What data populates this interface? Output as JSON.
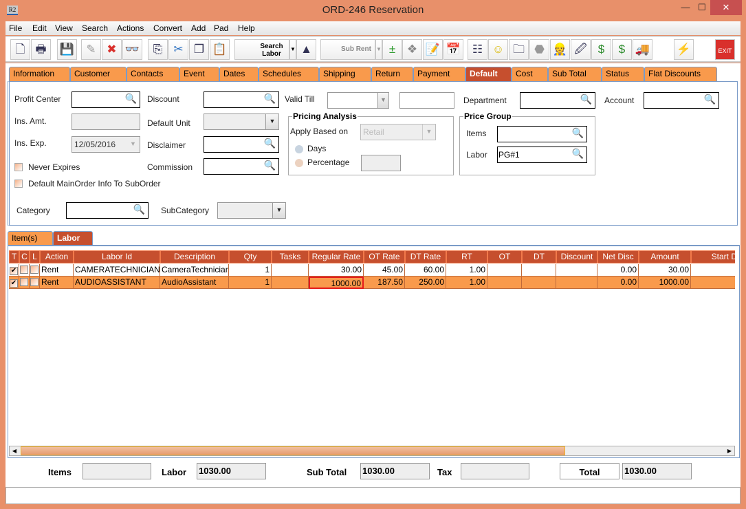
{
  "window": {
    "title": "ORD-246 Reservation",
    "app_icon": "R2",
    "minimize": "—",
    "maximize": "☐",
    "close": "✕"
  },
  "menu": [
    "File",
    "Edit",
    "View",
    "Search",
    "Actions",
    "Convert",
    "Add",
    "Pad",
    "Help"
  ],
  "toolbar": {
    "buttons": [
      {
        "icon": "new-document-icon",
        "glyph": "🗋"
      },
      {
        "icon": "print-icon",
        "glyph": "🖶"
      },
      {
        "icon": "save-icon",
        "glyph": "💾"
      },
      {
        "icon": "edit-pencil-icon",
        "glyph": "✎"
      },
      {
        "icon": "delete-icon",
        "glyph": "✖"
      },
      {
        "icon": "binoculars-icon",
        "glyph": "👓"
      },
      {
        "icon": "copy-order-icon",
        "glyph": "⎘"
      },
      {
        "icon": "cut-icon",
        "glyph": "✂"
      },
      {
        "icon": "copy-icon",
        "glyph": "❐"
      },
      {
        "icon": "paste-icon",
        "glyph": "📋"
      },
      {
        "icon": "shapes-icon",
        "glyph": "▲"
      },
      {
        "icon": "add-remove-icon",
        "glyph": "±"
      },
      {
        "icon": "puzzle-icon",
        "glyph": "❖"
      },
      {
        "icon": "notepad-icon",
        "glyph": "📝"
      },
      {
        "icon": "calendar-icon",
        "glyph": "📅"
      },
      {
        "icon": "org-chart-icon",
        "glyph": "☷"
      },
      {
        "icon": "smiley-icon",
        "glyph": "☺"
      },
      {
        "icon": "folder-clock-icon",
        "glyph": "🗀"
      },
      {
        "icon": "gray-shape-icon",
        "glyph": "⬣"
      },
      {
        "icon": "worker-icon",
        "glyph": "👷"
      },
      {
        "icon": "edit-document-icon",
        "glyph": "🖉"
      },
      {
        "icon": "dollar-arrows-icon",
        "glyph": "$"
      },
      {
        "icon": "dollar-notes-icon",
        "glyph": "$"
      },
      {
        "icon": "truck-icon",
        "glyph": "🚚"
      },
      {
        "icon": "lightning-icon",
        "glyph": "⚡"
      },
      {
        "icon": "exit-icon",
        "glyph": "EXIT"
      }
    ],
    "search_labor": "Search Labor",
    "sub_rent": "Sub Rent"
  },
  "tabs": [
    "Information",
    "Customer",
    "Contacts",
    "Event",
    "Dates",
    "Schedules",
    "Shipping",
    "Return",
    "Payment",
    "Default",
    "Cost",
    "Sub Total",
    "Status",
    "Flat Discounts"
  ],
  "active_tab": "Default",
  "form": {
    "profit_center": {
      "label": "Profit Center",
      "value": ""
    },
    "ins_amt": {
      "label": "Ins. Amt.",
      "value": ""
    },
    "ins_exp": {
      "label": "Ins. Exp.",
      "value": "12/05/2016"
    },
    "never_expires": {
      "label": "Never Expires",
      "checked": false
    },
    "default_mainorder": {
      "label": "Default MainOrder Info To SubOrder",
      "checked": false
    },
    "discount": {
      "label": "Discount",
      "value": ""
    },
    "default_unit": {
      "label": "Default Unit",
      "value": ""
    },
    "disclaimer": {
      "label": "Disclaimer",
      "value": ""
    },
    "commission": {
      "label": "Commission",
      "value": ""
    },
    "valid_till": {
      "label": "Valid Till",
      "date": "",
      "time": ""
    },
    "department": {
      "label": "Department",
      "value": ""
    },
    "account": {
      "label": "Account",
      "value": ""
    },
    "category": {
      "label": "Category",
      "value": ""
    },
    "subcategory": {
      "label": "SubCategory",
      "value": ""
    },
    "pricing_analysis": {
      "title": "Pricing Analysis",
      "apply_label": "Apply Based on",
      "apply_value": "Retail",
      "days": "Days",
      "percentage": "Percentage",
      "percentage_value": ""
    },
    "price_group": {
      "title": "Price Group",
      "items_label": "Items",
      "items_value": "",
      "labor_label": "Labor",
      "labor_value": "PG#1"
    }
  },
  "subtabs": [
    "Item(s)",
    "Labor"
  ],
  "active_subtab": "Labor",
  "table": {
    "columns": [
      "T",
      "C",
      "L",
      "Action",
      "Labor Id",
      "Description",
      "Qty",
      "Tasks",
      "Regular Rate",
      "OT Rate",
      "DT Rate",
      "RT",
      "OT",
      "DT",
      "Discount",
      "Net Disc",
      "Amount",
      "Start D"
    ],
    "rows": [
      {
        "t": true,
        "c": false,
        "l": false,
        "action": "Rent",
        "labor_id": "CAMERATECHNICIAN",
        "description": "CameraTechnician",
        "qty": "1",
        "tasks": "",
        "regular_rate": "30.00",
        "ot_rate": "45.00",
        "dt_rate": "60.00",
        "rt": "1.00",
        "ot": "",
        "dt": "",
        "discount": "",
        "net_disc": "0.00",
        "amount": "30.00",
        "start": ""
      },
      {
        "t": true,
        "c": false,
        "l": false,
        "action": "Rent",
        "labor_id": "AUDIOASSISTANT",
        "description": "AudioAssistant",
        "qty": "1",
        "tasks": "",
        "regular_rate": "1000.00",
        "ot_rate": "187.50",
        "dt_rate": "250.00",
        "rt": "1.00",
        "ot": "",
        "dt": "",
        "discount": "",
        "net_disc": "0.00",
        "amount": "1000.00",
        "start": "",
        "selected": true
      }
    ]
  },
  "totals": {
    "items_label": "Items",
    "items": "",
    "labor_label": "Labor",
    "labor": "1030.00",
    "subtotal_label": "Sub Total",
    "subtotal": "1030.00",
    "tax_label": "Tax",
    "tax": "",
    "total_label": "Total",
    "total": "1030.00"
  },
  "colors": {
    "frame": "#e8906a",
    "tab": "#f99a4c",
    "tab_active": "#c64f2e",
    "selected_row": "#f99a4c"
  }
}
